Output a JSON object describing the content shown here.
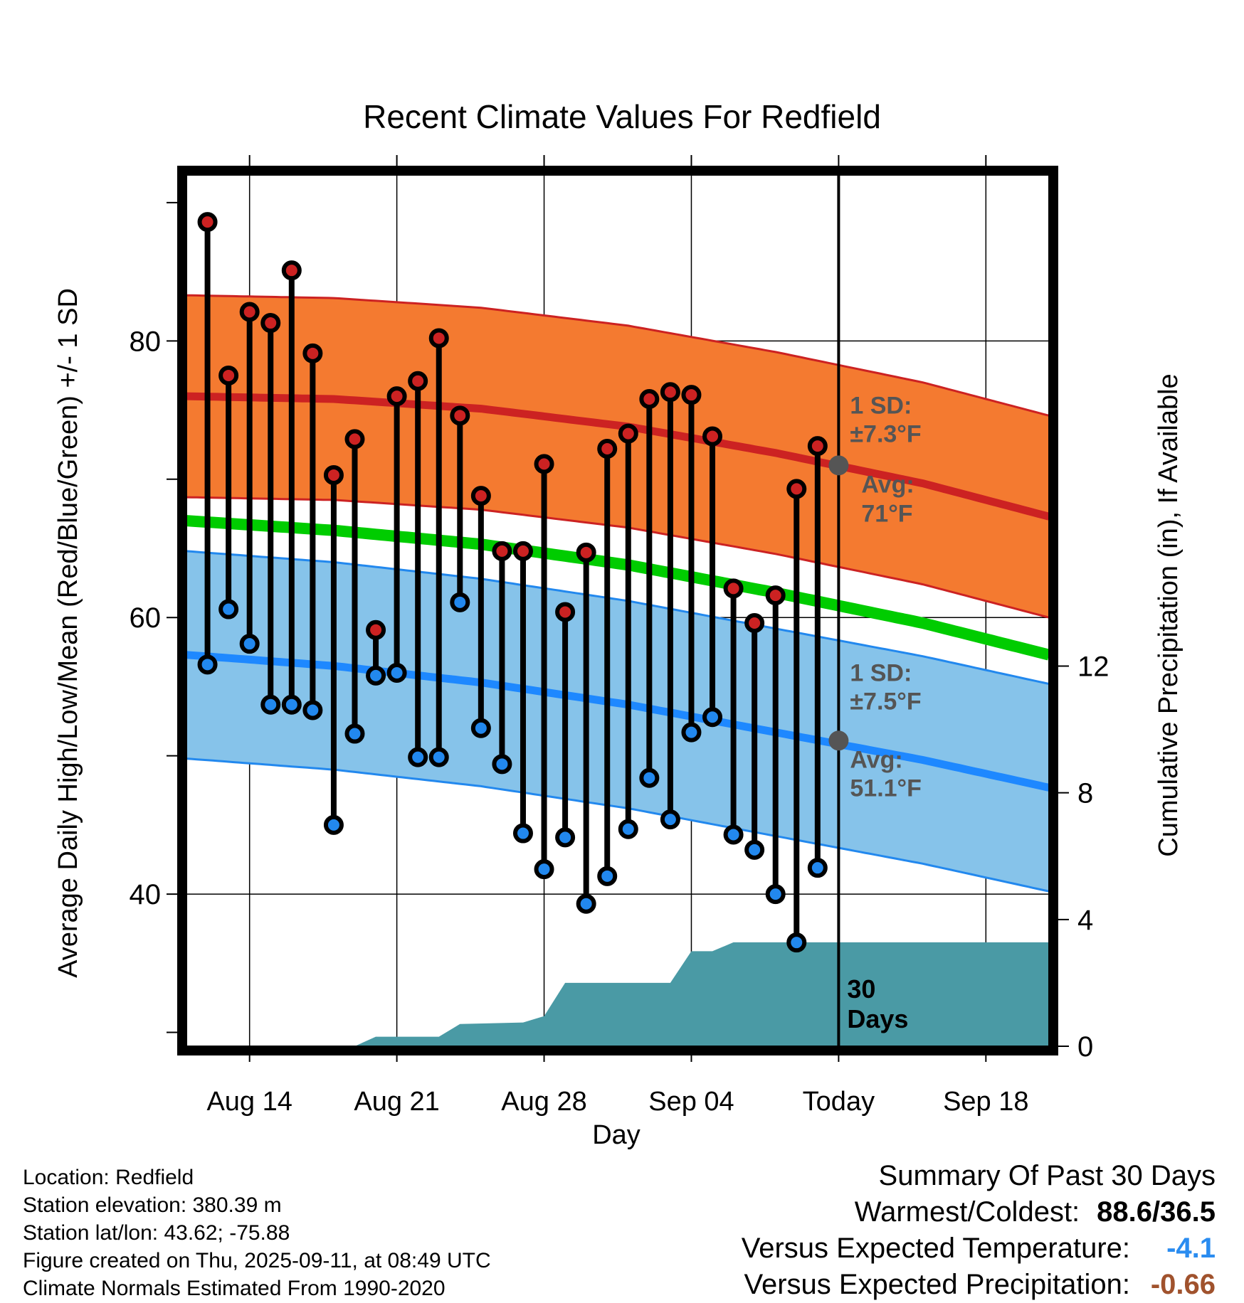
{
  "chart_data": {
    "type": "line",
    "title": "Recent Climate Values For Redfield",
    "xlabel": "Day",
    "ylabel_left": "Average Daily High/Low/Mean (Red/Blue/Green) +/- 1 SD",
    "ylabel_right": "Cumulative Precipitation (in), If Available",
    "x_tick_labels": [
      "Aug 14",
      "Aug 21",
      "Aug 28",
      "Sep 04",
      "Today",
      "Sep 18"
    ],
    "x_tick_dates": [
      "2025-08-14",
      "2025-08-21",
      "2025-08-28",
      "2025-09-04",
      "2025-09-11",
      "2025-09-18"
    ],
    "xlim": [
      "2025-08-11",
      "2025-09-21"
    ],
    "ylim_left": [
      29,
      92
    ],
    "y_left_ticks": [
      40,
      60,
      80
    ],
    "y_right_ticks": [
      0,
      4,
      8,
      12
    ],
    "ylim_right": [
      0,
      27.5
    ],
    "grid": true,
    "dates": [
      "2025-08-12",
      "2025-08-13",
      "2025-08-14",
      "2025-08-15",
      "2025-08-16",
      "2025-08-17",
      "2025-08-18",
      "2025-08-19",
      "2025-08-20",
      "2025-08-21",
      "2025-08-22",
      "2025-08-23",
      "2025-08-24",
      "2025-08-25",
      "2025-08-26",
      "2025-08-27",
      "2025-08-28",
      "2025-08-29",
      "2025-08-30",
      "2025-08-31",
      "2025-09-01",
      "2025-09-02",
      "2025-09-03",
      "2025-09-04",
      "2025-09-05",
      "2025-09-06",
      "2025-09-07",
      "2025-09-08",
      "2025-09-09",
      "2025-09-10"
    ],
    "series": [
      {
        "name": "Daily High",
        "color": "#cc2222",
        "values": [
          88.6,
          77.5,
          82.1,
          81.3,
          85.1,
          79.1,
          70.3,
          72.9,
          59.1,
          76.0,
          77.1,
          80.2,
          74.6,
          68.8,
          64.8,
          64.8,
          71.1,
          60.4,
          64.7,
          72.2,
          73.3,
          75.8,
          76.3,
          76.1,
          73.1,
          62.1,
          59.6,
          61.6,
          69.3,
          72.4
        ]
      },
      {
        "name": "Daily Low",
        "color": "#2288ee",
        "values": [
          56.6,
          60.6,
          58.1,
          53.7,
          53.7,
          53.3,
          45.0,
          51.6,
          55.8,
          56.0,
          49.9,
          49.9,
          61.1,
          52.0,
          49.4,
          44.4,
          41.8,
          44.1,
          39.3,
          41.3,
          44.7,
          48.4,
          45.4,
          51.7,
          52.8,
          44.3,
          43.2,
          40.0,
          36.5,
          41.9
        ]
      },
      {
        "name": "Average High",
        "color": "#cc2222",
        "x": [
          "2025-08-11",
          "2025-08-18",
          "2025-08-25",
          "2025-09-01",
          "2025-09-08",
          "2025-09-15",
          "2025-09-21"
        ],
        "values": [
          76.0,
          75.8,
          75.1,
          73.8,
          71.9,
          69.7,
          67.3
        ]
      },
      {
        "name": "Average Low",
        "color": "#1e88ff",
        "x": [
          "2025-08-11",
          "2025-08-18",
          "2025-08-25",
          "2025-09-01",
          "2025-09-08",
          "2025-09-15",
          "2025-09-21"
        ],
        "values": [
          57.3,
          56.5,
          55.3,
          53.7,
          51.7,
          49.7,
          47.7
        ]
      },
      {
        "name": "Average Mean",
        "color": "#00cc00",
        "x": [
          "2025-08-11",
          "2025-08-18",
          "2025-08-25",
          "2025-09-01",
          "2025-09-08",
          "2025-09-15",
          "2025-09-21"
        ],
        "values": [
          67.0,
          66.3,
          65.3,
          63.8,
          61.8,
          59.6,
          57.3
        ]
      },
      {
        "name": "Cumulative Precipitation",
        "color": "#4a9aa5",
        "x": [
          "2025-08-11",
          "2025-08-19",
          "2025-08-20",
          "2025-08-23",
          "2025-08-24",
          "2025-08-27",
          "2025-08-28",
          "2025-08-29",
          "2025-09-01",
          "2025-09-03",
          "2025-09-04",
          "2025-09-05",
          "2025-09-06",
          "2025-09-21"
        ],
        "values": [
          0,
          0,
          0.3,
          0.3,
          0.7,
          0.75,
          0.95,
          2.0,
          2.0,
          2.0,
          3.0,
          3.0,
          3.28,
          3.28
        ]
      }
    ],
    "sd_bands": {
      "high_sd": 7.3,
      "low_sd": 7.5,
      "high_band_color": "#f47a30",
      "low_band_color": "#86c3ea"
    },
    "annotations": {
      "high_sd_label_1": "1 SD:",
      "high_sd_label_2": "±7.3°F",
      "high_avg_label_1": "Avg:",
      "high_avg_label_2": "71°F",
      "low_sd_label_1": "1 SD:",
      "low_sd_label_2": "±7.5°F",
      "low_avg_label_1": "Avg:",
      "low_avg_label_2": "51.1°F",
      "days_label_1": "30",
      "days_label_2": "Days",
      "today_avg_high": 71.0,
      "today_avg_low": 51.1
    }
  },
  "footer": {
    "location": "Location: Redfield",
    "elevation": "Station elevation: 380.39 m",
    "latlon": "Station lat/lon: 43.62; -75.88",
    "created": "Figure created on Thu, 2025-09-11, at 08:49 UTC",
    "normals": "Climate Normals Estimated From 1990-2020"
  },
  "summary": {
    "title": "Summary Of Past 30 Days",
    "warm_cold_label": "Warmest/Coldest:",
    "warm_cold_value": "88.6/36.5",
    "temp_label": "Versus Expected Temperature:",
    "temp_value": "-4.1",
    "temp_color": "#2a8cf0",
    "precip_label": "Versus Expected Precipitation:",
    "precip_value": "-0.66",
    "precip_color": "#a0522d"
  }
}
